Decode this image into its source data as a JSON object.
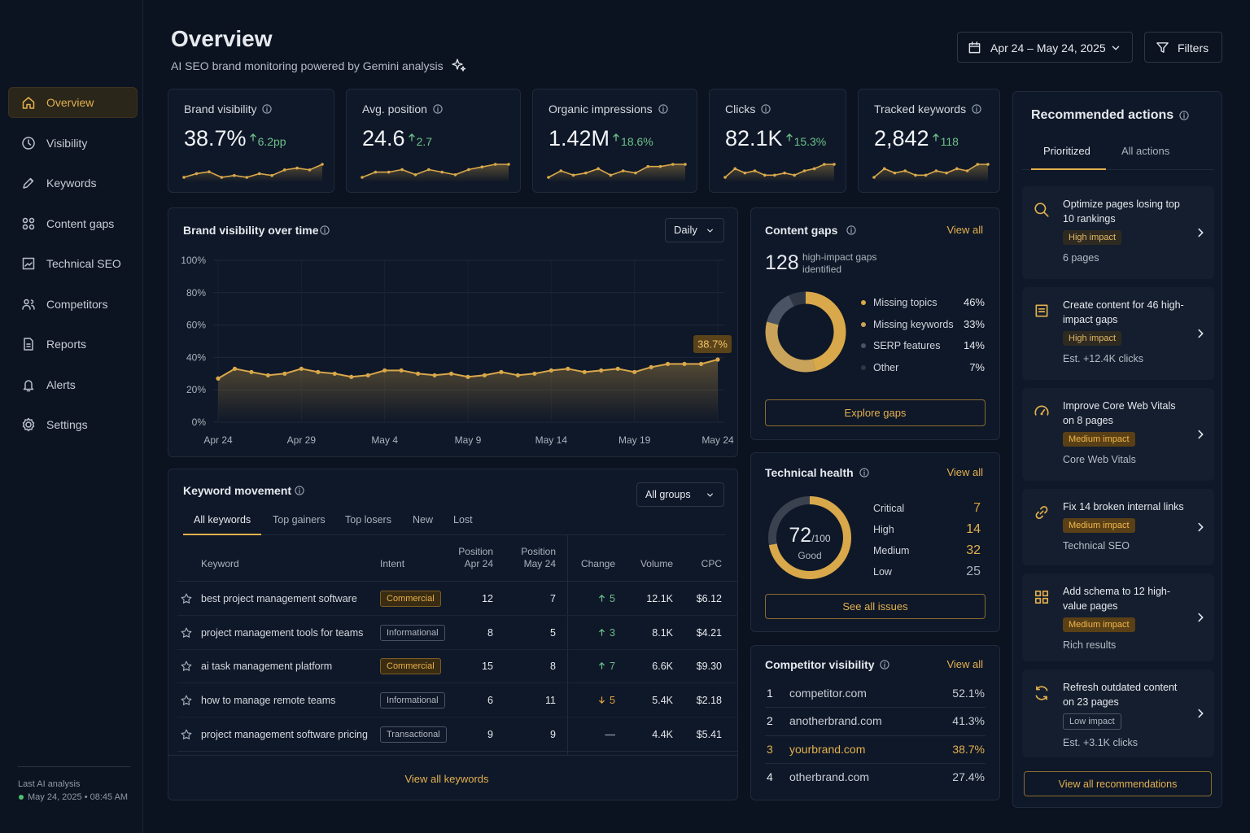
{
  "sidebar": {
    "nav": [
      {
        "label": "Overview",
        "active": true
      },
      {
        "label": "Visibility",
        "active": false
      },
      {
        "label": "Keywords",
        "active": false
      },
      {
        "label": "Content gaps",
        "active": false
      },
      {
        "label": "Technical SEO",
        "active": false
      },
      {
        "label": "Competitors",
        "active": false
      },
      {
        "label": "Reports",
        "active": false
      },
      {
        "label": "Alerts",
        "active": false
      },
      {
        "label": "Settings",
        "active": false
      }
    ],
    "footer": {
      "label": "Last AI analysis",
      "timestamp": "May 24, 2025 • 08:45 AM"
    }
  },
  "header": {
    "title": "Overview",
    "subtitle": "AI SEO brand monitoring powered by Gemini analysis",
    "date_range": "Apr 24 – May 24, 2025",
    "filters": "Filters"
  },
  "kpis": [
    {
      "label": "Brand visibility",
      "value": "38.7%",
      "delta": "6.2pp",
      "trend": [
        3,
        5,
        6,
        3,
        4,
        3,
        5,
        4,
        7,
        8,
        7,
        10
      ]
    },
    {
      "label": "Avg. position",
      "value": "24.6",
      "delta": "2.7",
      "trend": [
        3,
        5,
        5,
        6,
        4,
        6,
        5,
        4,
        6,
        7,
        8,
        8
      ]
    },
    {
      "label": "Organic impressions",
      "value": "1.42M",
      "delta": "18.6%",
      "trend": [
        3,
        6,
        4,
        5,
        7,
        4,
        6,
        5,
        8,
        8,
        9,
        9
      ]
    },
    {
      "label": "Clicks",
      "value": "82.1K",
      "delta": "15.3%",
      "trend": [
        3,
        7,
        5,
        6,
        4,
        4,
        5,
        4,
        6,
        7,
        9,
        9
      ]
    },
    {
      "label": "Tracked keywords",
      "value": "2,842",
      "delta": "118",
      "trend": [
        3,
        7,
        5,
        6,
        4,
        4,
        6,
        5,
        7,
        6,
        9,
        9
      ]
    }
  ],
  "visibility": {
    "title": "Brand visibility over time",
    "interval": "Daily",
    "chart_data": {
      "type": "line",
      "categories": [
        "Apr 24",
        null,
        null,
        null,
        null,
        "Apr 29",
        null,
        null,
        null,
        null,
        "May 4",
        null,
        null,
        null,
        null,
        "May 9",
        null,
        null,
        null,
        null,
        "May 14",
        null,
        null,
        null,
        null,
        "May 19",
        null,
        null,
        null,
        null,
        "May 24"
      ],
      "values": [
        27,
        33,
        31,
        29,
        30,
        33,
        31,
        30,
        28,
        29,
        32,
        32,
        30,
        29,
        30,
        28,
        29,
        31,
        29,
        30,
        32,
        33,
        31,
        32,
        33,
        31,
        34,
        36,
        36,
        36,
        38.7
      ],
      "annotation": "38.7%",
      "color": "#d9a84a",
      "ylim": [
        0,
        100
      ],
      "yticks": [
        {
          "value": 0,
          "label": "0%"
        },
        {
          "value": 20,
          "label": "20%"
        },
        {
          "value": 40,
          "label": "40%"
        },
        {
          "value": 60,
          "label": "60%"
        },
        {
          "value": 80,
          "label": "80%"
        },
        {
          "value": 100,
          "label": "100%"
        }
      ],
      "grid": true
    }
  },
  "content_gaps": {
    "title": "Content gaps",
    "view_all": "View all",
    "count": "128",
    "count_label": "high-impact gaps identified",
    "button": "Explore gaps",
    "chart_data": {
      "type": "donut",
      "categories": [
        "Missing topics",
        "Missing keywords",
        "SERP features",
        "Other"
      ],
      "values": [
        46,
        33,
        14,
        7
      ],
      "value_labels": [
        "46%",
        "33%",
        "14%",
        "7%"
      ],
      "colors": [
        "#d9a84a",
        "#c9a35a",
        "#4a5363",
        "#2f3744"
      ]
    }
  },
  "technical_health": {
    "title": "Technical health",
    "view_all": "View all",
    "score": 72,
    "max": {
      "value": 100,
      "label": "/100"
    },
    "status": "Good",
    "button": "See all issues",
    "items": [
      {
        "label": "Critical",
        "value": 7,
        "color": "#e0a040"
      },
      {
        "label": "High",
        "value": 14,
        "color": "#e3b04e"
      },
      {
        "label": "Medium",
        "value": 32,
        "color": "#e3b04e"
      },
      {
        "label": "Low",
        "value": 25,
        "color": "#a9b0bb"
      }
    ]
  },
  "competitors": {
    "title": "Competitor visibility",
    "view_all": "View all",
    "rows": [
      {
        "rank": 1,
        "name": "competitor.com",
        "share": "52.1%",
        "highlight": false
      },
      {
        "rank": 2,
        "name": "anotherbrand.com",
        "share": "41.3%",
        "highlight": false
      },
      {
        "rank": 3,
        "name": "yourbrand.com",
        "share": "38.7%",
        "highlight": true
      },
      {
        "rank": 4,
        "name": "otherbrand.com",
        "share": "27.4%",
        "highlight": false
      }
    ]
  },
  "keywords": {
    "title": "Keyword movement",
    "group": "All groups",
    "tabs": [
      "All keywords",
      "Top gainers",
      "Top losers",
      "New",
      "Lost"
    ],
    "columns": [
      "Keyword",
      "Intent",
      "Position Apr 24",
      "Position May 24",
      "Change",
      "Volume",
      "CPC"
    ],
    "rows": [
      {
        "keyword": "best project management software",
        "intent": "Commercial",
        "tone": "gold",
        "pos_start": "12",
        "pos_end": "7",
        "change": "5",
        "direction": "up",
        "volume": "12.1K",
        "cpc": "$6.12"
      },
      {
        "keyword": "project management tools for teams",
        "intent": "Informational",
        "tone": "gray",
        "pos_start": "8",
        "pos_end": "5",
        "change": "3",
        "direction": "up",
        "volume": "8.1K",
        "cpc": "$4.21"
      },
      {
        "keyword": "ai task management platform",
        "intent": "Commercial",
        "tone": "gold",
        "pos_start": "15",
        "pos_end": "8",
        "change": "7",
        "direction": "up",
        "volume": "6.6K",
        "cpc": "$9.30"
      },
      {
        "keyword": "how to manage remote teams",
        "intent": "Informational",
        "tone": "gray",
        "pos_start": "6",
        "pos_end": "11",
        "change": "5",
        "direction": "down",
        "volume": "5.4K",
        "cpc": "$2.18"
      },
      {
        "keyword": "project management software pricing",
        "intent": "Transactional",
        "tone": "gray",
        "pos_start": "9",
        "pos_end": "9",
        "change": "—",
        "direction": "none",
        "volume": "4.4K",
        "cpc": "$5.41"
      }
    ],
    "footer": "View all keywords"
  },
  "actions": {
    "title": "Recommended actions",
    "tabs": [
      "Prioritized",
      "All actions"
    ],
    "button": "View all recommendations",
    "items": [
      {
        "title": "Optimize pages losing top 10 rankings",
        "impact": "High impact",
        "level": "high",
        "detail": "6 pages"
      },
      {
        "title": "Create content for 46 high-impact gaps",
        "impact": "High impact",
        "level": "high",
        "detail": "Est. +12.4K clicks"
      },
      {
        "title": "Improve Core Web Vitals on 8 pages",
        "impact": "Medium impact",
        "level": "medium",
        "detail": "Core Web Vitals"
      },
      {
        "title": "Fix 14 broken internal links",
        "impact": "Medium impact",
        "level": "medium",
        "detail": "Technical SEO"
      },
      {
        "title": "Add schema to 12 high-value pages",
        "impact": "Medium impact",
        "level": "medium",
        "detail": "Rich results"
      },
      {
        "title": "Refresh outdated content on 23 pages",
        "impact": "Low impact",
        "level": "low",
        "detail": "Est. +3.1K clicks"
      }
    ]
  }
}
